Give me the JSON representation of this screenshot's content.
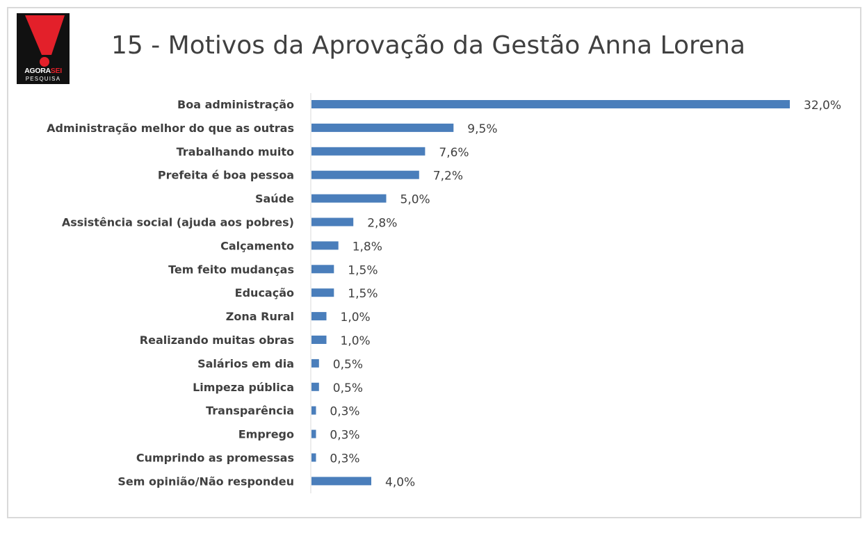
{
  "logo": {
    "brand_main": "AGORA",
    "brand_accent": "SEI",
    "subtitle": "PESQUISA",
    "colors": {
      "background": "#111111",
      "exclamation": "#e3202a"
    }
  },
  "header": {
    "title": "15 - Motivos da Aprovação da Gestão Anna Lorena"
  },
  "chart_data": {
    "type": "bar",
    "orientation": "horizontal",
    "title": "15 - Motivos da Aprovação da Gestão Anna Lorena",
    "xlabel": "",
    "ylabel": "",
    "xlim": [
      0,
      32
    ],
    "grid": false,
    "legend": "none",
    "bar_color": "#4a7ebb",
    "categories": [
      "Boa administração",
      "Administração melhor do que as outras",
      "Trabalhando muito",
      "Prefeita é boa pessoa",
      "Saúde",
      "Assistência social (ajuda aos pobres)",
      "Calçamento",
      "Tem feito mudanças",
      "Educação",
      "Zona Rural",
      "Realizando muitas obras",
      "Salários em dia",
      "Limpeza pública",
      "Transparência",
      "Emprego",
      "Cumprindo as promessas",
      "Sem opinião/Não respondeu"
    ],
    "values": [
      32.0,
      9.5,
      7.6,
      7.2,
      5.0,
      2.8,
      1.8,
      1.5,
      1.5,
      1.0,
      1.0,
      0.5,
      0.5,
      0.3,
      0.3,
      0.3,
      4.0
    ],
    "data_labels": [
      "32,0%",
      "9,5%",
      "7,6%",
      "7,2%",
      "5,0%",
      "2,8%",
      "1,8%",
      "1,5%",
      "1,5%",
      "1,0%",
      "1,0%",
      "0,5%",
      "0,5%",
      "0,3%",
      "0,3%",
      "0,3%",
      "4,0%"
    ]
  }
}
